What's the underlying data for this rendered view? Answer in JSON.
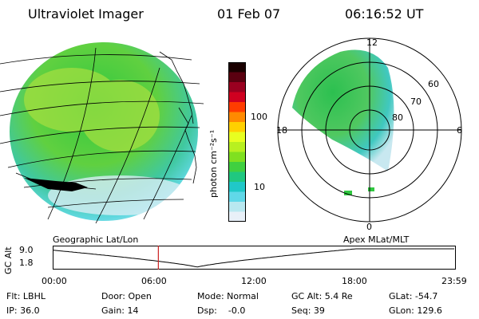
{
  "header": {
    "title": "Ultraviolet Imager",
    "date": "01 Feb 07",
    "time": "06:16:52 UT"
  },
  "colorbar": {
    "label": "photon cm⁻²s⁻¹",
    "ticks": [
      "100",
      "10"
    ],
    "colors": [
      "#1a0000",
      "#5a0010",
      "#9a0020",
      "#d00020",
      "#ff3c00",
      "#ff8a00",
      "#ffd000",
      "#e8ff20",
      "#b8f020",
      "#80e020",
      "#40d040",
      "#20c880",
      "#20c8c8",
      "#60d8e8",
      "#b8e8f0",
      "#e8f0f8"
    ]
  },
  "polar": {
    "hour_labels": {
      "top": "12",
      "left": "18",
      "right": "6",
      "bottom": "0"
    },
    "lat_labels": [
      "60",
      "70",
      "80"
    ]
  },
  "map_labels": {
    "left": "Geographic Lat/Lon",
    "right": "Apex MLat/MLT"
  },
  "timeline": {
    "ylabel": "GC Alt",
    "yticks": [
      "9.0",
      "1.8"
    ],
    "xticks": [
      "00:00",
      "06:00",
      "12:00",
      "18:00",
      "23:59"
    ],
    "cursor_time_hours": 6.28,
    "orbit_min_time_hours": 8.6
  },
  "status": {
    "filter": "Flt: LBHL",
    "ip": "IP: 36.0",
    "door": "Door: Open",
    "gain": "Gain: 14",
    "mode": "Mode: Normal",
    "dsp": "Dsp:    -0.0",
    "gc_alt": "GC Alt: 5.4 Re",
    "seq": "Seq: 39",
    "glat": "GLat: -54.7",
    "glon": "GLon: 129.6"
  },
  "colors": {
    "cursor": "#cc2020",
    "line": "#000000"
  }
}
